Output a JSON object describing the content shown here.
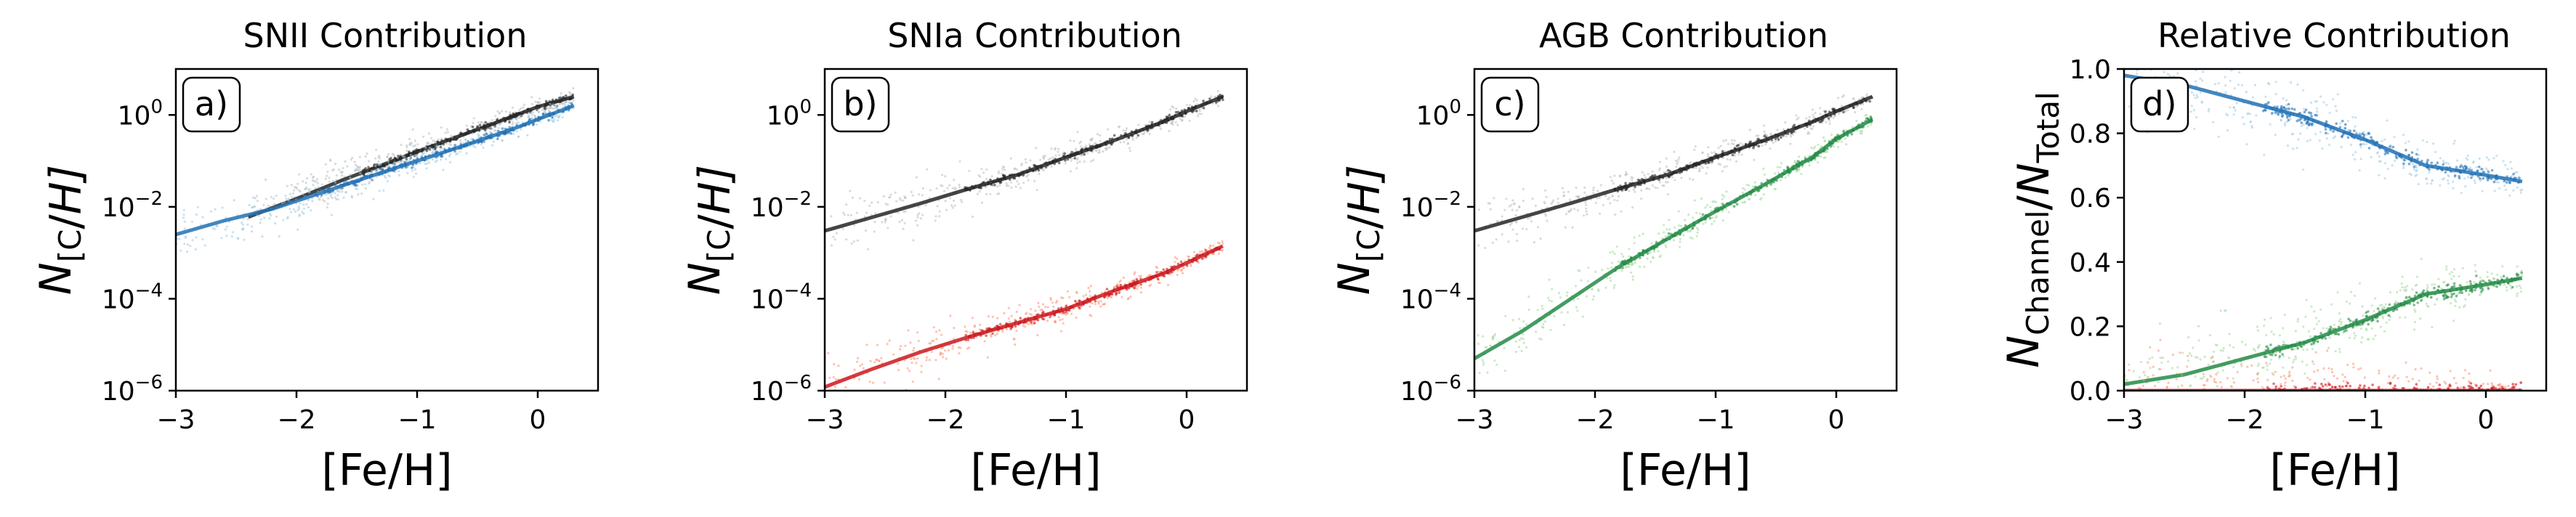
{
  "figure": {
    "panels": [
      {
        "tag": "a)",
        "title": "SNII Contribution"
      },
      {
        "tag": "b)",
        "title": "SNIa Contribution"
      },
      {
        "tag": "c)",
        "title": "AGB Contribution"
      },
      {
        "tag": "d)",
        "title": "Relative Contribution"
      }
    ]
  },
  "colors": {
    "snii": "#2171b5",
    "snii_light": "#9ecae1",
    "snia": "#cb181d",
    "snia_light": "#fc9272",
    "agb": "#238b45",
    "agb_light": "#a1d99b",
    "total": "#252525",
    "total_light": "#bdbdbd"
  },
  "chart_data": [
    {
      "type": "scatter",
      "title": "SNII Contribution",
      "annotation": "a)",
      "xlabel": "[Fe/H]",
      "ylabel": "N_[C/H]",
      "yscale": "log",
      "xlim": [
        -3,
        0.5
      ],
      "ylim": [
        1e-06,
        10
      ],
      "xticks": [
        -3,
        -2,
        -1,
        0
      ],
      "yticks": [
        1e-06,
        0.0001,
        0.01,
        1
      ],
      "ytick_labels": [
        "10^-6",
        "10^-4",
        "10^-2",
        "10^0"
      ],
      "series": [
        {
          "role": "total",
          "color": "#252525",
          "x": [
            -2.4,
            -2.0,
            -1.6,
            -1.2,
            -0.8,
            -0.4,
            0.0,
            0.3
          ],
          "y": [
            0.006,
            0.015,
            0.04,
            0.1,
            0.25,
            0.6,
            1.5,
            2.5
          ]
        },
        {
          "role": "channel",
          "color": "#2171b5",
          "x": [
            -3.0,
            -2.6,
            -2.2,
            -1.8,
            -1.4,
            -1.0,
            -0.6,
            -0.2,
            0.0,
            0.3
          ],
          "y": [
            0.0025,
            0.005,
            0.009,
            0.02,
            0.045,
            0.1,
            0.22,
            0.5,
            0.8,
            1.6
          ]
        }
      ]
    },
    {
      "type": "scatter",
      "title": "SNIa Contribution",
      "annotation": "b)",
      "xlabel": "[Fe/H]",
      "ylabel": "N_[C/H]",
      "yscale": "log",
      "xlim": [
        -3,
        0.5
      ],
      "ylim": [
        1e-06,
        10
      ],
      "xticks": [
        -3,
        -2,
        -1,
        0
      ],
      "yticks": [
        1e-06,
        0.0001,
        0.01,
        1
      ],
      "ytick_labels": [
        "10^-6",
        "10^-4",
        "10^-2",
        "10^0"
      ],
      "series": [
        {
          "role": "total",
          "color": "#252525",
          "x": [
            -3.0,
            -2.6,
            -2.2,
            -1.8,
            -1.4,
            -1.0,
            -0.6,
            -0.2,
            0.0,
            0.3
          ],
          "y": [
            0.003,
            0.006,
            0.012,
            0.025,
            0.05,
            0.12,
            0.28,
            0.7,
            1.2,
            2.5
          ]
        },
        {
          "role": "channel",
          "color": "#cb181d",
          "x": [
            -3.0,
            -2.6,
            -2.2,
            -1.8,
            -1.4,
            -1.0,
            -0.6,
            -0.2,
            0.0,
            0.3
          ],
          "y": [
            1.2e-06,
            3e-06,
            7e-06,
            1.5e-05,
            3e-05,
            6e-05,
            0.00015,
            0.00035,
            0.0006,
            0.0014
          ]
        }
      ]
    },
    {
      "type": "scatter",
      "title": "AGB Contribution",
      "annotation": "c)",
      "xlabel": "[Fe/H]",
      "ylabel": "N_[C/H]",
      "yscale": "log",
      "xlim": [
        -3,
        0.5
      ],
      "ylim": [
        1e-06,
        10
      ],
      "xticks": [
        -3,
        -2,
        -1,
        0
      ],
      "yticks": [
        1e-06,
        0.0001,
        0.01,
        1
      ],
      "ytick_labels": [
        "10^-6",
        "10^-4",
        "10^-2",
        "10^0"
      ],
      "series": [
        {
          "role": "total",
          "color": "#252525",
          "x": [
            -3.0,
            -2.6,
            -2.2,
            -1.8,
            -1.4,
            -1.0,
            -0.6,
            -0.2,
            0.0,
            0.3
          ],
          "y": [
            0.003,
            0.006,
            0.012,
            0.025,
            0.05,
            0.12,
            0.28,
            0.7,
            1.2,
            2.5
          ]
        },
        {
          "role": "channel",
          "color": "#238b45",
          "x": [
            -3.0,
            -2.6,
            -2.2,
            -1.8,
            -1.4,
            -1.0,
            -0.6,
            -0.2,
            0.0,
            0.3
          ],
          "y": [
            5e-06,
            2e-05,
            0.0001,
            0.0005,
            0.002,
            0.008,
            0.03,
            0.12,
            0.3,
            0.8
          ]
        }
      ]
    },
    {
      "type": "scatter",
      "title": "Relative Contribution",
      "annotation": "d)",
      "xlabel": "[Fe/H]",
      "ylabel": "N_Channel/N_Total",
      "xlim": [
        -3,
        0.5
      ],
      "ylim": [
        0,
        1
      ],
      "xticks": [
        -3,
        -2,
        -1,
        0
      ],
      "yticks": [
        0.0,
        0.2,
        0.4,
        0.6,
        0.8,
        1.0
      ],
      "ytick_labels": [
        "0.0",
        "0.2",
        "0.4",
        "0.6",
        "0.8",
        "1.0"
      ],
      "series": [
        {
          "role": "SNII",
          "color": "#2171b5",
          "x": [
            -3.0,
            -2.5,
            -2.0,
            -1.5,
            -1.0,
            -0.5,
            0.0,
            0.3
          ],
          "y": [
            0.98,
            0.95,
            0.9,
            0.85,
            0.78,
            0.7,
            0.67,
            0.65
          ]
        },
        {
          "role": "AGB",
          "color": "#238b45",
          "x": [
            -3.0,
            -2.5,
            -2.0,
            -1.5,
            -1.0,
            -0.5,
            0.0,
            0.3
          ],
          "y": [
            0.02,
            0.05,
            0.1,
            0.15,
            0.22,
            0.3,
            0.33,
            0.35
          ]
        },
        {
          "role": "SNIa",
          "color": "#cb181d",
          "x": [
            -3.0,
            -2.0,
            -1.0,
            0.0,
            0.3
          ],
          "y": [
            0.0,
            0.0,
            0.0,
            0.0,
            0.0
          ]
        }
      ]
    }
  ]
}
